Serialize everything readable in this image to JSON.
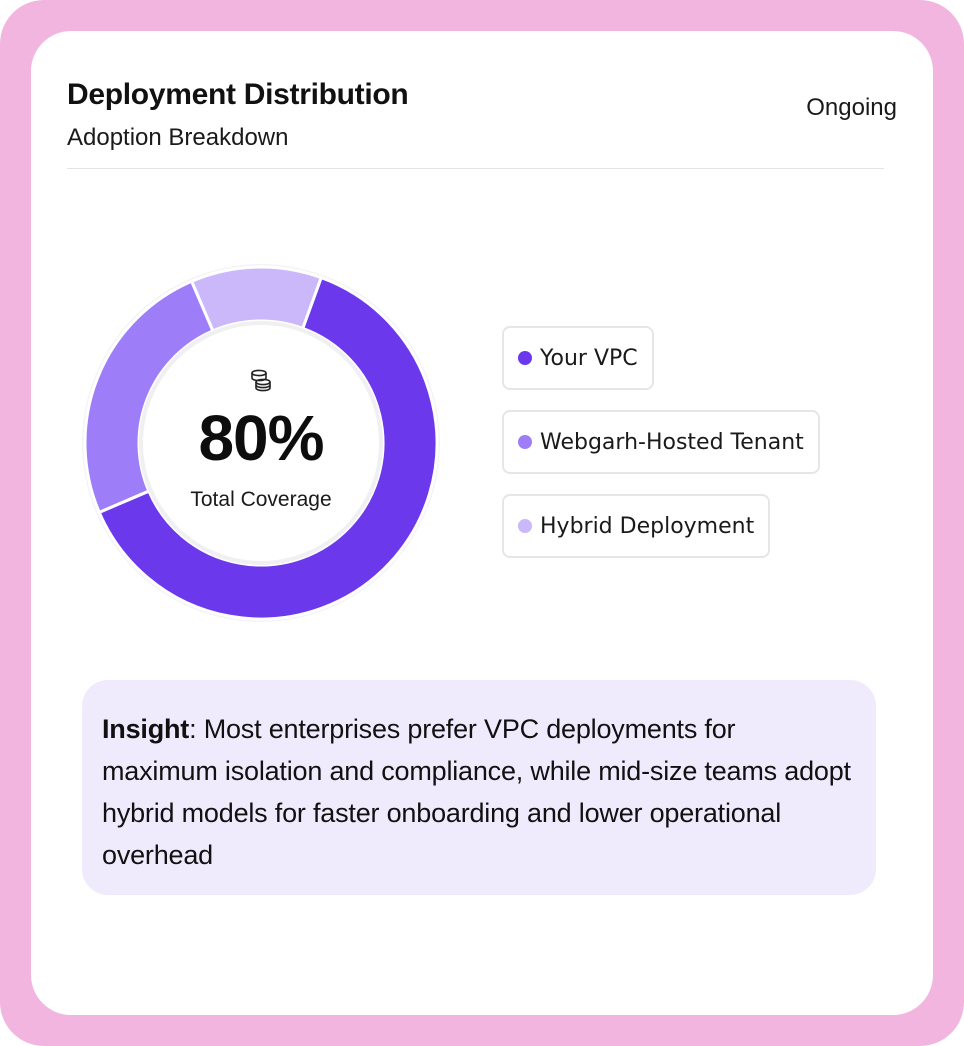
{
  "header": {
    "title": "Deployment Distribution",
    "subtitle": "Adoption Breakdown",
    "status": "Ongoing"
  },
  "center": {
    "icon": "database-icon",
    "value": "80%",
    "label": "Total Coverage"
  },
  "legend": [
    {
      "label": "Your VPC",
      "color": "#6b38ec"
    },
    {
      "label": "Webgarh-Hosted Tenant",
      "color": "#9e7ef8"
    },
    {
      "label": "Hybrid Deployment",
      "color": "#cbb8fb"
    }
  ],
  "insight": {
    "label": "Insight",
    "separator": ": ",
    "text": "Most enterprises prefer VPC deployments for maximum isolation and compliance, while mid-size teams adopt hybrid models for faster onboarding and lower operational overhead"
  },
  "chart_data": {
    "type": "pie",
    "categories": [
      "Your VPC",
      "Webgarh-Hosted Tenant",
      "Hybrid Deployment"
    ],
    "values": [
      63,
      25,
      12
    ],
    "colors": [
      "#6b38ec",
      "#9e7ef8",
      "#cbb8fb"
    ],
    "center_text": "80%",
    "center_label": "Total Coverage"
  }
}
